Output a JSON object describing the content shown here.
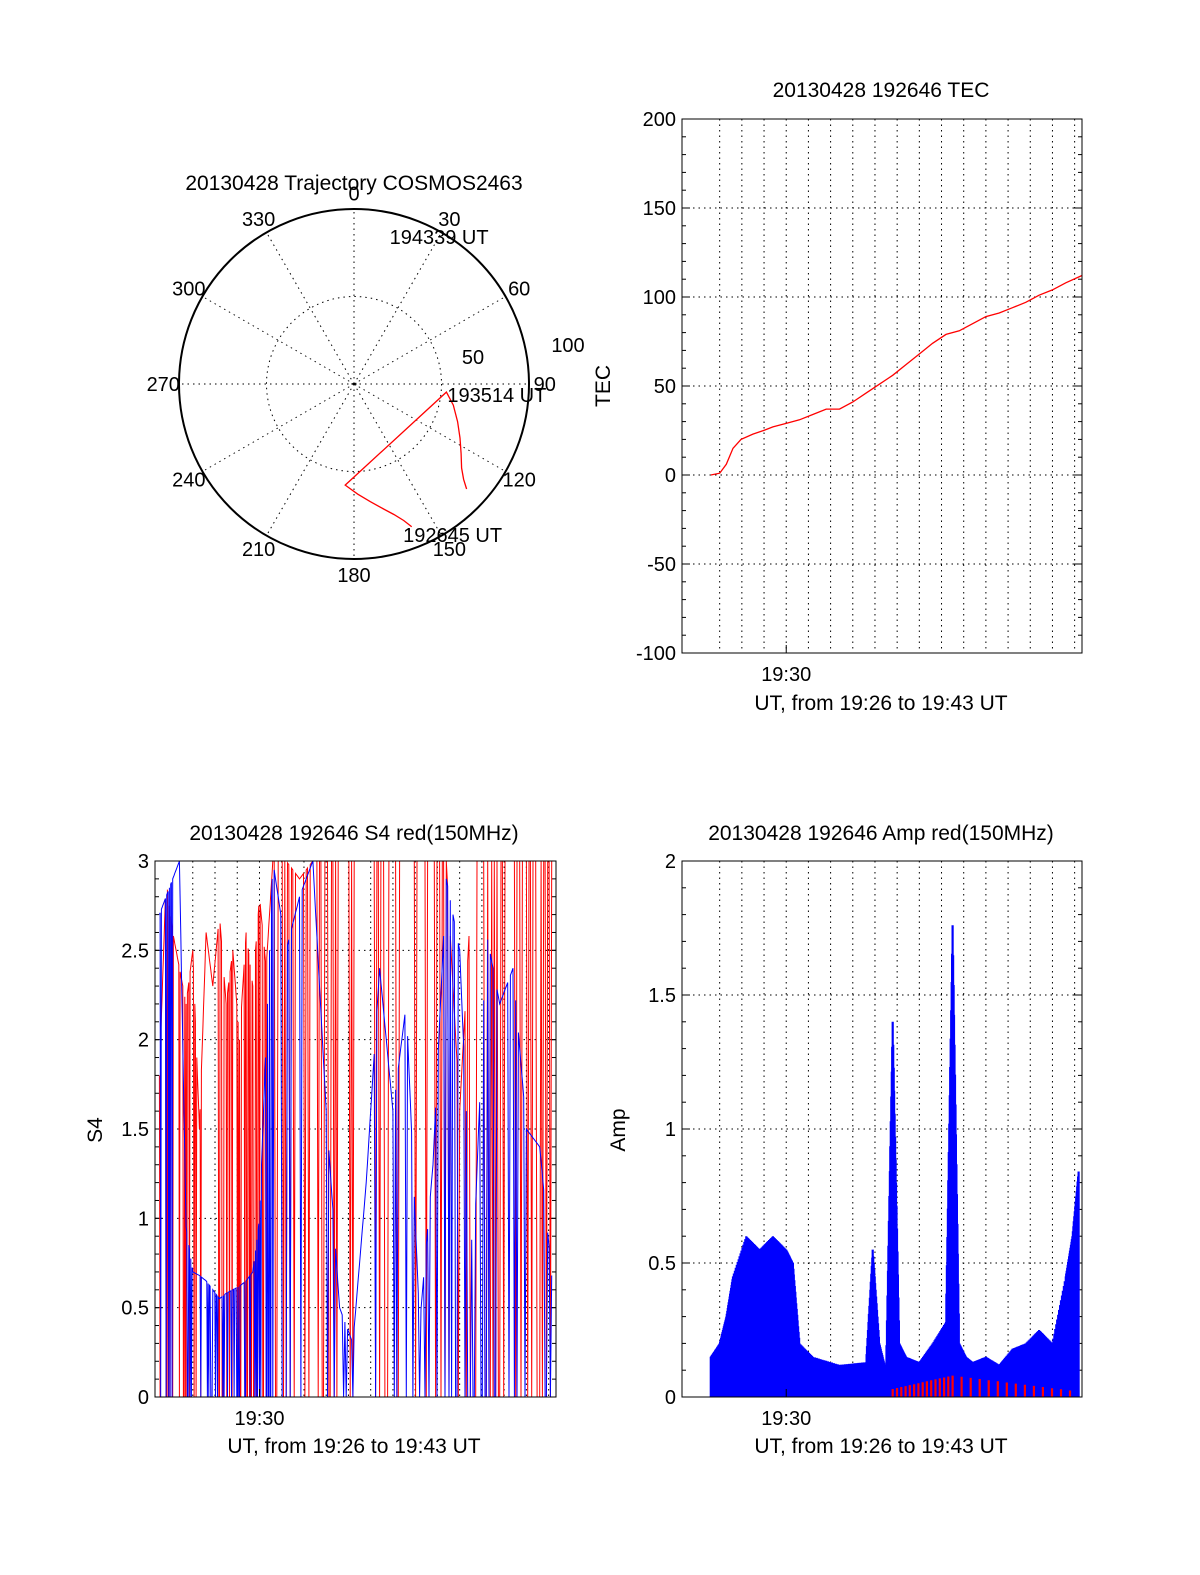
{
  "chart_data": [
    {
      "type": "polar",
      "title": "20130428 Trajectory COSMOS2463",
      "angle_labels": [
        "0",
        "30",
        "60",
        "90",
        "120",
        "150",
        "180",
        "210",
        "240",
        "270",
        "300",
        "330"
      ],
      "radial_labels": [
        "50",
        "100"
      ],
      "rlim": [
        0,
        100
      ],
      "grid": true,
      "series": [
        {
          "color": "#ff0000",
          "points": [
            [
              158,
              88
            ],
            [
              160,
              83
            ],
            [
              163,
              78
            ],
            [
              167,
              73
            ],
            [
              172,
              68
            ],
            [
              178,
              63
            ],
            [
              185,
              58
            ],
            [
              95,
              53
            ],
            [
              102,
              58
            ],
            [
              110,
              63
            ],
            [
              117,
              68
            ],
            [
              123,
              73
            ],
            [
              128,
              78
            ],
            [
              131,
              83
            ],
            [
              133,
              88
            ]
          ]
        }
      ],
      "annotations": [
        {
          "text": "194339 UT",
          "az": 13,
          "r": 88
        },
        {
          "text": "193514 UT",
          "az": 95,
          "r": 53
        },
        {
          "text": "192645 UT",
          "az": 162,
          "r": 89
        }
      ]
    },
    {
      "type": "line",
      "title": "20130428 192646 TEC",
      "xlabel": "UT, from 19:26 to 19:43 UT",
      "ylabel": "TEC",
      "xlim": [
        19.4217,
        19.7222
      ],
      "ylim": [
        -100,
        200
      ],
      "yticks": [
        "200",
        "150",
        "100",
        "50",
        "0",
        "-50",
        "-100"
      ],
      "xtick_label": "19:30",
      "xtick_value": 19.5,
      "grid": true,
      "series": [
        {
          "color": "#ff0000",
          "x": [
            19.4433,
            19.45,
            19.455,
            19.46,
            19.466,
            19.475,
            19.483,
            19.49,
            19.5,
            19.51,
            19.52,
            19.53,
            19.54,
            19.55,
            19.56,
            19.57,
            19.58,
            19.59,
            19.6,
            19.61,
            19.62,
            19.63,
            19.64,
            19.65,
            19.66,
            19.67,
            19.68,
            19.69,
            19.7,
            19.71,
            19.722
          ],
          "y": [
            0,
            1,
            6,
            15,
            20,
            23,
            25,
            27,
            29,
            31,
            34,
            37,
            37,
            41,
            46,
            51,
            56,
            62,
            68,
            74,
            79,
            81,
            85,
            89,
            91,
            94,
            97,
            101,
            104,
            108,
            112
          ]
        }
      ]
    },
    {
      "type": "line",
      "title": "20130428 192646 S4 red(150MHz)",
      "xlabel": "UT, from 19:26 to 19:43 UT",
      "ylabel": "S4",
      "xlim": [
        19.4217,
        19.7222
      ],
      "ylim": [
        0,
        3
      ],
      "yticks": [
        "3",
        "2.5",
        "2",
        "1.5",
        "1",
        "0.5",
        "0"
      ],
      "xtick_label": "19:30",
      "xtick_value": 19.5,
      "grid": true,
      "series": [
        {
          "color": "#ff0000",
          "x": [
            19.425,
            19.43,
            19.435,
            19.44,
            19.445,
            19.45,
            19.455,
            19.46,
            19.465,
            19.47,
            19.475,
            19.48,
            19.485,
            19.49,
            19.495,
            19.5,
            19.505,
            19.51,
            19.52,
            19.53,
            19.54,
            19.55,
            19.56,
            19.57,
            19.58,
            19.59,
            19.6,
            19.61,
            19.62,
            19.63,
            19.64,
            19.65,
            19.66,
            19.67,
            19.68,
            19.69,
            19.7,
            19.71,
            19.72
          ],
          "y": [
            1.8,
            2.9,
            2.6,
            2.4,
            2.2,
            2.5,
            1.5,
            2.6,
            2.3,
            2.7,
            2.2,
            2.5,
            2.0,
            2.6,
            2.3,
            2.8,
            2.4,
            3.0,
            3.0,
            2.9,
            3.0,
            3.0,
            3.0,
            3.0,
            3.0,
            3.0,
            3.0,
            3.0,
            3.0,
            3.0,
            3.0,
            1.6,
            3.0,
            3.0,
            3.0,
            3.0,
            3.0,
            3.0,
            3.0
          ]
        },
        {
          "color": "#0000ff",
          "x": [
            19.425,
            19.43,
            19.435,
            19.44,
            19.445,
            19.45,
            19.455,
            19.46,
            19.465,
            19.47,
            19.475,
            19.48,
            19.485,
            19.49,
            19.495,
            19.5,
            19.505,
            19.51,
            19.52,
            19.53,
            19.54,
            19.55,
            19.56,
            19.57,
            19.58,
            19.59,
            19.6,
            19.61,
            19.62,
            19.63,
            19.64,
            19.65,
            19.66,
            19.67,
            19.68,
            19.69,
            19.7,
            19.71,
            19.72
          ],
          "y": [
            2.7,
            2.8,
            2.9,
            3.0,
            0.95,
            0.7,
            0.68,
            0.65,
            0.6,
            0.55,
            0.58,
            0.6,
            0.62,
            0.65,
            0.7,
            1.0,
            2.0,
            3.0,
            2.5,
            2.8,
            3.0,
            1.6,
            0.5,
            0.3,
            1.2,
            2.4,
            1.6,
            2.2,
            0.4,
            1.3,
            2.9,
            2.5,
            0.7,
            2.6,
            2.2,
            2.4,
            1.5,
            1.4,
            0.6
          ]
        }
      ]
    },
    {
      "type": "line",
      "title": "20130428 192646 Amp red(150MHz)",
      "xlabel": "UT, from 19:26 to 19:43 UT",
      "ylabel": "Amp",
      "xlim": [
        19.4217,
        19.7222
      ],
      "ylim": [
        0,
        2
      ],
      "yticks": [
        "2",
        "1.5",
        "1",
        "0.5",
        "0"
      ],
      "xtick_label": "19:30",
      "xtick_value": 19.5,
      "grid": true,
      "series": [
        {
          "color": "#0000ff",
          "x": [
            19.4433,
            19.45,
            19.455,
            19.46,
            19.47,
            19.48,
            19.49,
            19.5,
            19.505,
            19.51,
            19.52,
            19.54,
            19.56,
            19.565,
            19.57,
            19.575,
            19.58,
            19.585,
            19.59,
            19.6,
            19.61,
            19.62,
            19.625,
            19.63,
            19.635,
            19.64,
            19.65,
            19.66,
            19.67,
            19.68,
            19.69,
            19.7,
            19.71,
            19.715,
            19.72
          ],
          "y": [
            0.15,
            0.2,
            0.3,
            0.45,
            0.6,
            0.55,
            0.6,
            0.55,
            0.5,
            0.2,
            0.15,
            0.12,
            0.13,
            0.55,
            0.2,
            0.1,
            1.4,
            0.2,
            0.15,
            0.13,
            0.2,
            0.28,
            1.76,
            0.2,
            0.15,
            0.13,
            0.15,
            0.12,
            0.18,
            0.2,
            0.25,
            0.2,
            0.45,
            0.6,
            0.86
          ]
        },
        {
          "color": "#ff0000",
          "x": [
            19.58,
            19.625,
            19.72
          ],
          "y": [
            0.03,
            0.08,
            0.02
          ]
        }
      ]
    }
  ]
}
